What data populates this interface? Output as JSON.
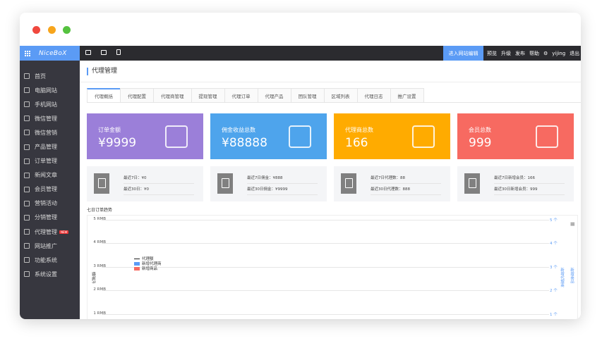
{
  "window": {
    "dots": [
      "#f0483e",
      "#f7a51c",
      "#55c23f"
    ]
  },
  "topbar": {
    "logo": "NiceBoX",
    "edit_button": "进入网站编辑",
    "links": [
      "预览",
      "升级",
      "发布",
      "帮助"
    ],
    "user": "yijing",
    "logout": "退出"
  },
  "sidebar": {
    "items": [
      {
        "label": "首页"
      },
      {
        "label": "电脑网站"
      },
      {
        "label": "手机网站"
      },
      {
        "label": "微信管理"
      },
      {
        "label": "微信营销"
      },
      {
        "label": "产品管理"
      },
      {
        "label": "订单管理"
      },
      {
        "label": "新闻文章"
      },
      {
        "label": "会员管理"
      },
      {
        "label": "营销活动"
      },
      {
        "label": "分销管理"
      },
      {
        "label": "代理管理",
        "badge": "NEW"
      },
      {
        "label": "网站推广"
      },
      {
        "label": "功能系统"
      },
      {
        "label": "系统设置"
      }
    ]
  },
  "page": {
    "title": "代理管理"
  },
  "tabs": [
    {
      "label": "代理概括",
      "active": true
    },
    {
      "label": "代理配置"
    },
    {
      "label": "代理商管理"
    },
    {
      "label": "提现管理"
    },
    {
      "label": "代理订单"
    },
    {
      "label": "代理产品"
    },
    {
      "label": "团队管理"
    },
    {
      "label": "区域列表"
    },
    {
      "label": "代理日志"
    },
    {
      "label": "推广设置"
    }
  ],
  "cards": [
    {
      "label": "订单金额",
      "value": "¥9999",
      "color": "#9b7fd9",
      "icon": "money-hand-icon",
      "line1": "最近7日：¥0",
      "line2": "最近30日：¥0"
    },
    {
      "label": "佣金收益总数",
      "value": "¥88888",
      "color": "#4ea4ec",
      "icon": "tablet-chart-icon",
      "line1": "最近7日佣金：¥888",
      "line2": "最近30日佣金：¥9999"
    },
    {
      "label": "代理商总数",
      "value": "166",
      "color": "#ffab00",
      "icon": "org-chart-icon",
      "line1": "最近7日代理数：88",
      "line2": "最近30日代理数：888"
    },
    {
      "label": "会员总数",
      "value": "999",
      "color": "#f76a61",
      "icon": "folder-icon",
      "line1": "最近7日新增会员：166",
      "line2": "最近30日新增会员：999"
    }
  ],
  "chart": {
    "title": "七日订单趋势",
    "ylabel": "代理额",
    "left_ticks": [
      "5 RMB",
      "4 RMB",
      "3 RMB",
      "2 RMB",
      "1 RMB"
    ],
    "right_ticks": [
      "5 个",
      "4 个",
      "3 个",
      "2 个",
      "1 个"
    ],
    "right_labels": [
      "新增代理商",
      "新增商品"
    ],
    "legend": [
      {
        "name": "代理额",
        "color": "#222"
      },
      {
        "name": "新增代理商",
        "color": "#5b9bf5"
      },
      {
        "name": "新增商品",
        "color": "#f76a61"
      }
    ]
  }
}
